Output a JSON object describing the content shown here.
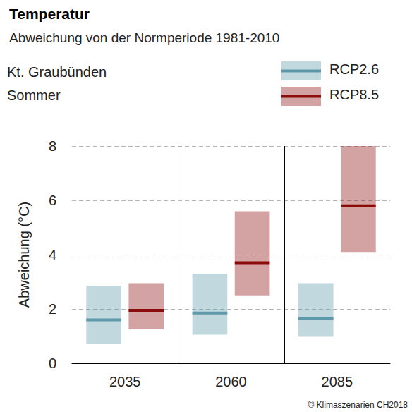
{
  "chart_data": {
    "type": "range_bar",
    "title": "Temperatur",
    "subtitle": "Abweichung von der Normperiode 1981-2010",
    "annotations": [
      "Kt. Graubünden",
      "Sommer"
    ],
    "source": "© Klimaszenarien CH2018",
    "y_label": "Abweichung (°C)",
    "categories": [
      "2035",
      "2060",
      "2085"
    ],
    "series": [
      {
        "name": "RCP2.6",
        "color": "#5e98ab",
        "low": [
          0.7,
          1.05,
          1.0
        ],
        "high": [
          2.85,
          3.3,
          2.95
        ],
        "median": [
          1.6,
          1.85,
          1.65
        ]
      },
      {
        "name": "RCP8.5",
        "color": "#8b0a0a",
        "low": [
          1.25,
          2.5,
          4.1
        ],
        "high": [
          2.95,
          5.6,
          8.0
        ],
        "median": [
          1.95,
          3.7,
          5.8
        ]
      }
    ],
    "ylim": [
      0,
      8
    ],
    "yticks": [
      0,
      2,
      4,
      6,
      8
    ],
    "grid": true,
    "legend": "top-right"
  }
}
